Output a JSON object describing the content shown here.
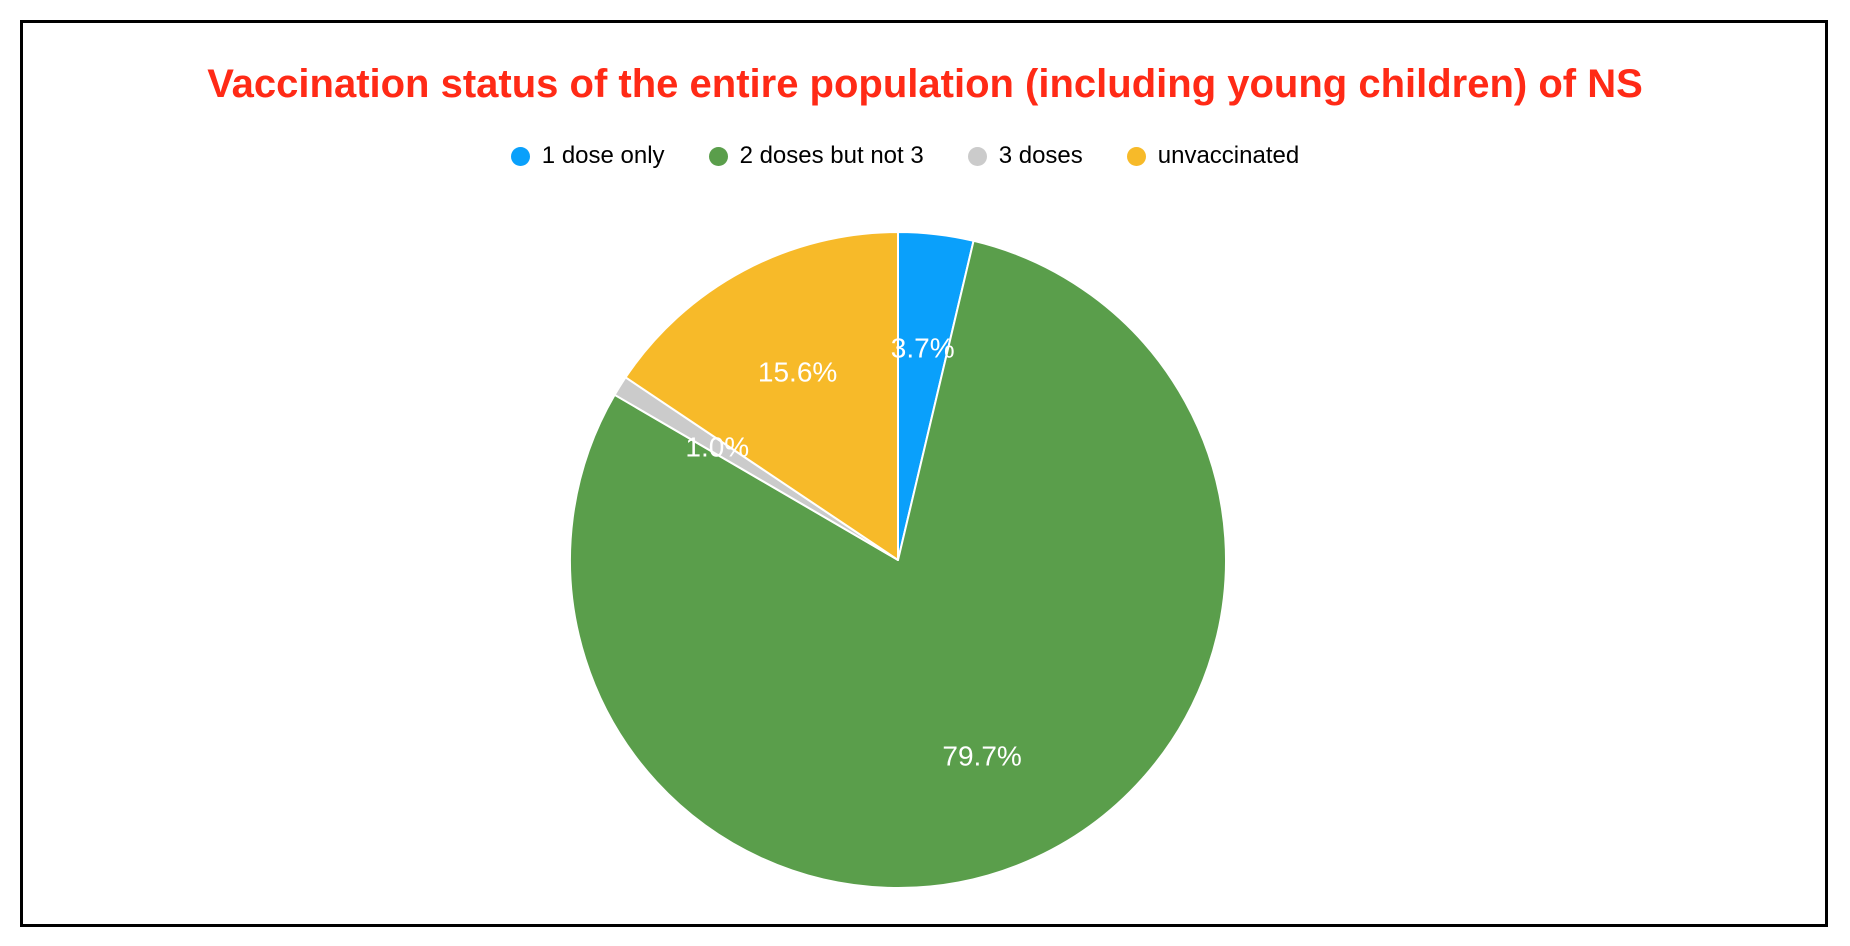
{
  "page": {
    "title": "Vaccination status of the entire population (including young children) of NS",
    "title_color": "#ff2a16",
    "background_color": "#ffffff",
    "frame_border_color": "#000000"
  },
  "legend": {
    "items": [
      {
        "label": "1 dose only",
        "color": "#0aa0fb"
      },
      {
        "label": "2 doses but not 3",
        "color": "#5a9e4b"
      },
      {
        "label": "3 doses",
        "color": "#cbcbcb"
      },
      {
        "label": "unvaccinated",
        "color": "#f7ba29"
      }
    ]
  },
  "chart_data": {
    "type": "pie",
    "title": "Vaccination status of the entire population (including young children) of NS",
    "categories": [
      "1 dose only",
      "2 doses but not 3",
      "3 doses",
      "unvaccinated"
    ],
    "values": [
      3.7,
      79.7,
      1.0,
      15.6
    ],
    "labels": [
      "3.7%",
      "79.7%",
      "1.0%",
      "15.6%"
    ],
    "colors": [
      "#0aa0fb",
      "#5a9e4b",
      "#cbcbcb",
      "#f7ba29"
    ],
    "start_angle_deg": 0,
    "direction": "clockwise",
    "legend_position": "top",
    "label_color": "#ffffff",
    "label_radius_fraction": 0.65
  }
}
